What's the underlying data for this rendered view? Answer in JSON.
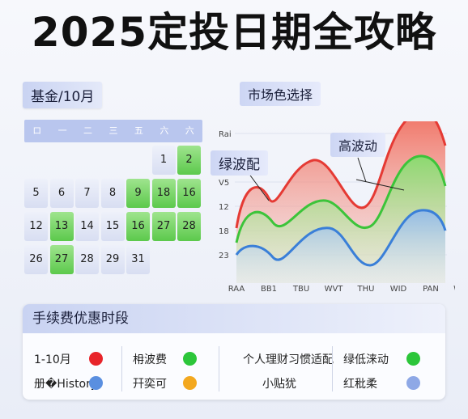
{
  "title": "2025定投日期全攻略",
  "calendar": {
    "label": "基金/10月",
    "weekdays": [
      "ロ",
      "一",
      "二",
      "三",
      "五",
      "六",
      "六"
    ],
    "cells": [
      {
        "v": "1",
        "g": false,
        "c": 5,
        "r": 0
      },
      {
        "v": "2",
        "g": true,
        "c": 6,
        "r": 0
      },
      {
        "v": "5",
        "g": false,
        "c": 0,
        "r": 1
      },
      {
        "v": "6",
        "g": false,
        "c": 1,
        "r": 1
      },
      {
        "v": "7",
        "g": false,
        "c": 2,
        "r": 1
      },
      {
        "v": "8",
        "g": false,
        "c": 3,
        "r": 1
      },
      {
        "v": "9",
        "g": true,
        "c": 4,
        "r": 1
      },
      {
        "v": "18",
        "g": true,
        "c": 5,
        "r": 1
      },
      {
        "v": "16",
        "g": true,
        "c": 6,
        "r": 1
      },
      {
        "v": "12",
        "g": false,
        "c": 0,
        "r": 2
      },
      {
        "v": "13",
        "g": true,
        "c": 1,
        "r": 2
      },
      {
        "v": "14",
        "g": false,
        "c": 2,
        "r": 2
      },
      {
        "v": "15",
        "g": false,
        "c": 3,
        "r": 2
      },
      {
        "v": "16",
        "g": true,
        "c": 4,
        "r": 2
      },
      {
        "v": "27",
        "g": true,
        "c": 5,
        "r": 2
      },
      {
        "v": "28",
        "g": true,
        "c": 6,
        "r": 2
      },
      {
        "v": "26",
        "g": false,
        "c": 0,
        "r": 3
      },
      {
        "v": "27",
        "g": true,
        "c": 1,
        "r": 3
      },
      {
        "v": "28",
        "g": false,
        "c": 2,
        "r": 3
      },
      {
        "v": "29",
        "g": false,
        "c": 3,
        "r": 3
      },
      {
        "v": "31",
        "g": false,
        "c": 4,
        "r": 3
      }
    ]
  },
  "chart": {
    "label_market": "市场色选择",
    "label_green": "绿波配",
    "label_high": "高波动",
    "y_ticks": [
      "Rai",
      "V5",
      "12",
      "18",
      "23"
    ],
    "x_ticks": [
      "RAA",
      "BB1",
      "TBU",
      "WVT",
      "THU",
      "WID",
      "PAN",
      "WAN"
    ],
    "series_colors": {
      "red": "#e53a34",
      "green": "#3cc43a",
      "blue": "#3a7fd8"
    }
  },
  "bottom": {
    "title": "手续费优惠时段",
    "rows": [
      [
        {
          "t": "1-10月",
          "dot": "#e8242a"
        },
        {
          "t": "枏波费",
          "dot": "#2cc63a"
        },
        {
          "t": "个人理财习惯适配",
          "dot": ""
        },
        {
          "t": "绿低涞动",
          "dot": "#2cc63a"
        }
      ],
      [
        {
          "t": "册�History",
          "dot": "#5a8fe0"
        },
        {
          "t": "幵奕可",
          "dot": "#f3a81f"
        },
        {
          "t": "小贴犹",
          "dot": ""
        },
        {
          "t": "红秕柔",
          "dot": "#8ea8e6"
        }
      ]
    ]
  }
}
